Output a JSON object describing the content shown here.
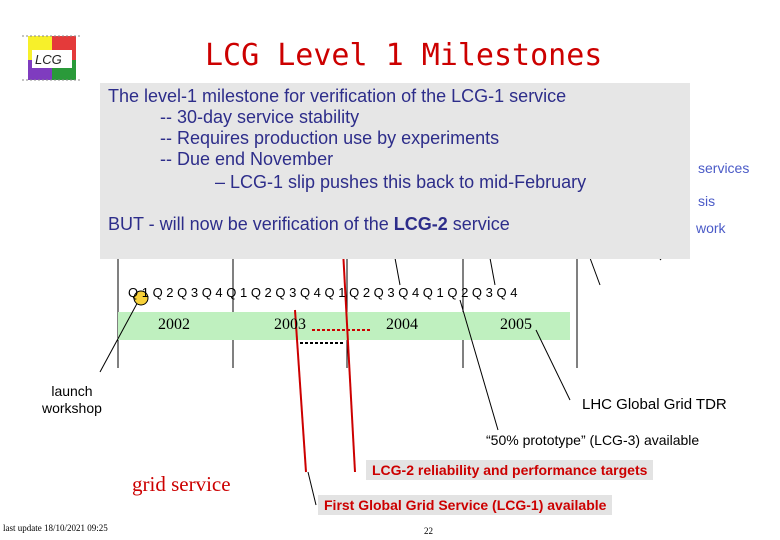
{
  "logo": {
    "text": "LCG"
  },
  "title": "LCG Level 1 Milestones",
  "callout": {
    "line1": "The level-1 milestone for verification of the LCG-1 service",
    "line2": "--  30-day service stability",
    "line3": "--  Requires production use by experiments",
    "line4": "--  Due end November",
    "line5": "– LCG-1 slip pushes this back to mid-February",
    "line6_prefix": "BUT - will now be verification of the ",
    "line6_bold": "LCG-2",
    "line6_suffix": " service"
  },
  "side_labels": {
    "services": "services",
    "sis": "sis",
    "work": "work"
  },
  "timeline": {
    "quarters_text": "Q 1  Q 2   Q 3  Q 4   Q 1  Q 2   Q 3  Q 4   Q 1  Q 2   Q 3  Q 4   Q 1  Q 2   Q 3  Q 4",
    "years": [
      "2002",
      "2003",
      "2004",
      "2005"
    ],
    "band_color": "#bff0bf"
  },
  "milestones": {
    "launch": "launch\nworkshop",
    "tdr": "LHC Global Grid TDR",
    "prototype": "“50% prototype” (LCG-3) available",
    "lcg2": "LCG-2 reliability and performance targets",
    "lcg1": "First Global Grid Service (LCG-1) available",
    "grid_service": "grid service"
  },
  "footer": {
    "last_update": "last update 18/10/2021 09:25",
    "page": "22"
  }
}
